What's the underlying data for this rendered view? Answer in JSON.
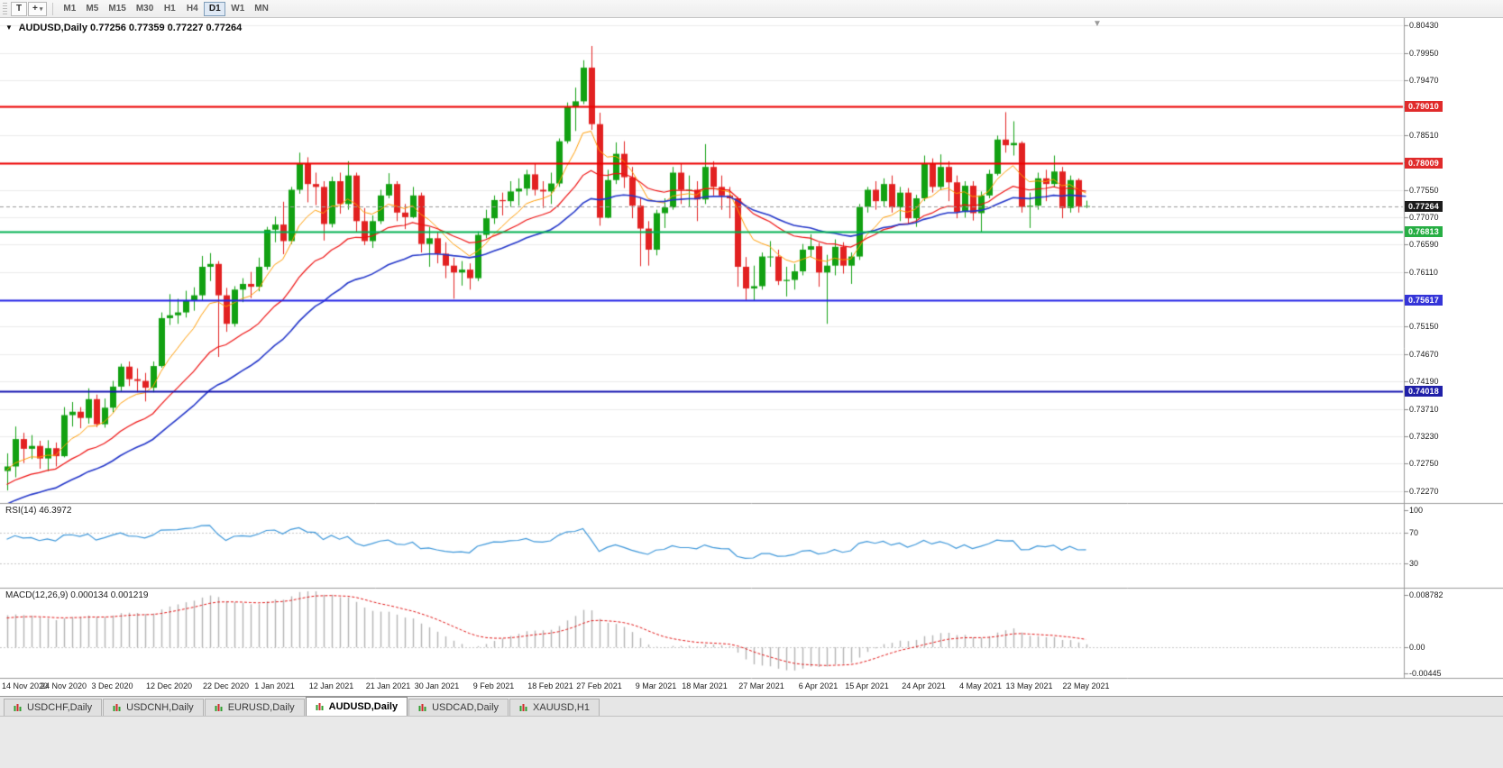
{
  "toolbar": {
    "text_tool": "T",
    "crosshair_glyph": "+",
    "caret": "▾",
    "timeframes": [
      "M1",
      "M5",
      "M15",
      "M30",
      "H1",
      "H4",
      "D1",
      "W1",
      "MN"
    ],
    "active_timeframe": "D1"
  },
  "chart_data": {
    "type": "candlestick",
    "symbol_label": "AUDUSD,Daily",
    "ohlc_label": "0.77256 0.77359 0.77227 0.77264",
    "ohlc_current": {
      "open": "0.77256",
      "high": "0.77359",
      "low": "0.77227",
      "close": "0.77264"
    },
    "title_arrow": "▼",
    "shift_marker": "▼",
    "ylim": [
      0.7206,
      0.8056
    ],
    "price_axis_ticks": [
      "0.80430",
      "0.79950",
      "0.79470",
      "0.78990",
      "0.78510",
      "0.78030",
      "0.77550",
      "0.77070",
      "0.76590",
      "0.76110",
      "0.75630",
      "0.75150",
      "0.74670",
      "0.74190",
      "0.73710",
      "0.73230",
      "0.72750",
      "0.72270"
    ],
    "time_axis_ticks": [
      {
        "label": "14 Nov 2020",
        "i": 0
      },
      {
        "label": "24 Nov 2020",
        "i": 7
      },
      {
        "label": "3 Dec 2020",
        "i": 13
      },
      {
        "label": "12 Dec 2020",
        "i": 20
      },
      {
        "label": "22 Dec 2020",
        "i": 27
      },
      {
        "label": "1 Jan 2021",
        "i": 33
      },
      {
        "label": "12 Jan 2021",
        "i": 40
      },
      {
        "label": "21 Jan 2021",
        "i": 47
      },
      {
        "label": "30 Jan 2021",
        "i": 53
      },
      {
        "label": "9 Feb 2021",
        "i": 60
      },
      {
        "label": "18 Feb 2021",
        "i": 67
      },
      {
        "label": "27 Feb 2021",
        "i": 73
      },
      {
        "label": "9 Mar 2021",
        "i": 80
      },
      {
        "label": "18 Mar 2021",
        "i": 86
      },
      {
        "label": "27 Mar 2021",
        "i": 93
      },
      {
        "label": "6 Apr 2021",
        "i": 100
      },
      {
        "label": "15 Apr 2021",
        "i": 106
      },
      {
        "label": "24 Apr 2021",
        "i": 113
      },
      {
        "label": "4 May 2021",
        "i": 120
      },
      {
        "label": "13 May 2021",
        "i": 126
      },
      {
        "label": "22 May 2021",
        "i": 133
      }
    ],
    "horizontal_levels": [
      {
        "name": "resistance-1",
        "price": 0.7901,
        "label": "0.79010",
        "line_color": "#f00000",
        "badge_color": "#e02b2b",
        "width": 2,
        "style": "solid"
      },
      {
        "name": "resistance-2",
        "price": 0.78009,
        "label": "0.78009",
        "line_color": "#f00000",
        "badge_color": "#e02b2b",
        "width": 2,
        "style": "solid"
      },
      {
        "name": "support-green",
        "price": 0.76813,
        "label": "0.76813",
        "line_color": "#00b050",
        "badge_color": "#27ae44",
        "width": 2,
        "style": "solid"
      },
      {
        "name": "support-blue-1",
        "price": 0.75617,
        "label": "0.75617",
        "line_color": "#2525e8",
        "badge_color": "#3535d8",
        "width": 2,
        "style": "solid"
      },
      {
        "name": "support-blue-2",
        "price": 0.74018,
        "label": "0.74018",
        "line_color": "#1414b0",
        "badge_color": "#2020a8",
        "width": 2,
        "style": "solid"
      },
      {
        "name": "current-price",
        "price": 0.77264,
        "label": "0.77264",
        "line_color": "#9a9a9a",
        "badge_color": "#1c1c1c",
        "width": 1,
        "style": "dashed"
      }
    ],
    "moving_averages": [
      {
        "period": 8,
        "seed": 0.7262,
        "color": "#ff9b00",
        "width": 1
      },
      {
        "period": 20,
        "seed": 0.7235,
        "color": "#ee1111",
        "width": 1.2
      },
      {
        "period": 34,
        "seed": 0.72,
        "color": "#2336c9",
        "width": 1.6
      }
    ],
    "rsi": {
      "label": "RSI(14) 46.3972",
      "value": "46.3972",
      "period": 14,
      "seed_gain": 0.0016,
      "seed_loss": 0.001,
      "color": "#3c96d9",
      "levels": [
        70,
        30
      ],
      "ticks": [
        {
          "label": "100",
          "value": 100
        },
        {
          "label": "70",
          "value": 70
        },
        {
          "label": "30",
          "value": 30
        }
      ]
    },
    "macd": {
      "label": "MACD(12,26,9) 0.000134 0.001219",
      "main_value": "0.000134",
      "signal_value": "0.001219",
      "fast": 12,
      "slow": 26,
      "signal": 9,
      "seed_fast": 0.7248,
      "seed_slow": 0.7192,
      "seed_signal": 0.0048,
      "hist_color": "#b4b4b4",
      "signal_color": "#e01515",
      "ticks": [
        {
          "label": "0.008782",
          "value": 0.008782
        },
        {
          "label": "0.00",
          "value": 0
        },
        {
          "label": "-0.00445",
          "value": -0.00445
        }
      ]
    },
    "colors": {
      "up": "#12a112",
      "down": "#e22121",
      "grid": "#ebebeb",
      "separator": "#9a9a9a",
      "axis_text": "#1b1b1b"
    },
    "candles": [
      [
        0.7262,
        0.7293,
        0.7228,
        0.727
      ],
      [
        0.727,
        0.734,
        0.7251,
        0.7318
      ],
      [
        0.7318,
        0.7329,
        0.7276,
        0.7301
      ],
      [
        0.7301,
        0.7325,
        0.7283,
        0.7306
      ],
      [
        0.7306,
        0.7315,
        0.7266,
        0.7284
      ],
      [
        0.7284,
        0.7316,
        0.7262,
        0.7302
      ],
      [
        0.7302,
        0.7312,
        0.727,
        0.7288
      ],
      [
        0.7288,
        0.7374,
        0.7286,
        0.736
      ],
      [
        0.736,
        0.7383,
        0.734,
        0.7366
      ],
      [
        0.7366,
        0.7374,
        0.7337,
        0.7355
      ],
      [
        0.7355,
        0.7407,
        0.7345,
        0.7388
      ],
      [
        0.7388,
        0.7396,
        0.7339,
        0.7344
      ],
      [
        0.7344,
        0.7389,
        0.7338,
        0.7373
      ],
      [
        0.7373,
        0.742,
        0.7365,
        0.741
      ],
      [
        0.741,
        0.745,
        0.7402,
        0.7445
      ],
      [
        0.7445,
        0.7454,
        0.7411,
        0.7423
      ],
      [
        0.7423,
        0.7442,
        0.74,
        0.742
      ],
      [
        0.742,
        0.7434,
        0.7384,
        0.7408
      ],
      [
        0.7408,
        0.7454,
        0.74,
        0.7446
      ],
      [
        0.7446,
        0.754,
        0.7443,
        0.753
      ],
      [
        0.753,
        0.7572,
        0.7518,
        0.7535
      ],
      [
        0.7535,
        0.7564,
        0.752,
        0.754
      ],
      [
        0.754,
        0.7578,
        0.7531,
        0.756
      ],
      [
        0.756,
        0.7584,
        0.7543,
        0.757
      ],
      [
        0.757,
        0.7639,
        0.756,
        0.762
      ],
      [
        0.762,
        0.7644,
        0.7595,
        0.7625
      ],
      [
        0.7625,
        0.763,
        0.7462,
        0.757
      ],
      [
        0.757,
        0.7583,
        0.7506,
        0.752
      ],
      [
        0.752,
        0.7586,
        0.7515,
        0.758
      ],
      [
        0.758,
        0.76,
        0.7558,
        0.759
      ],
      [
        0.759,
        0.7611,
        0.7565,
        0.7585
      ],
      [
        0.7585,
        0.7636,
        0.7577,
        0.762
      ],
      [
        0.762,
        0.769,
        0.7615,
        0.7685
      ],
      [
        0.7685,
        0.7708,
        0.7663,
        0.7694
      ],
      [
        0.7694,
        0.7734,
        0.7642,
        0.7665
      ],
      [
        0.7665,
        0.776,
        0.766,
        0.7755
      ],
      [
        0.7755,
        0.782,
        0.7748,
        0.78
      ],
      [
        0.78,
        0.7812,
        0.7733,
        0.7765
      ],
      [
        0.7765,
        0.7785,
        0.7728,
        0.776
      ],
      [
        0.776,
        0.777,
        0.7666,
        0.7695
      ],
      [
        0.7695,
        0.7778,
        0.7689,
        0.777
      ],
      [
        0.777,
        0.7785,
        0.7713,
        0.773
      ],
      [
        0.773,
        0.7805,
        0.772,
        0.778
      ],
      [
        0.778,
        0.7785,
        0.768,
        0.77
      ],
      [
        0.77,
        0.7723,
        0.7658,
        0.7665
      ],
      [
        0.7665,
        0.771,
        0.7653,
        0.77
      ],
      [
        0.77,
        0.7755,
        0.7695,
        0.7745
      ],
      [
        0.7745,
        0.7784,
        0.774,
        0.7765
      ],
      [
        0.7765,
        0.777,
        0.77,
        0.7715
      ],
      [
        0.7715,
        0.773,
        0.7686,
        0.7707
      ],
      [
        0.7707,
        0.776,
        0.7705,
        0.7745
      ],
      [
        0.7745,
        0.775,
        0.7645,
        0.766
      ],
      [
        0.766,
        0.769,
        0.762,
        0.767
      ],
      [
        0.767,
        0.768,
        0.7626,
        0.7643
      ],
      [
        0.7643,
        0.7663,
        0.76,
        0.7622
      ],
      [
        0.7622,
        0.7636,
        0.7564,
        0.761
      ],
      [
        0.761,
        0.763,
        0.7587,
        0.7615
      ],
      [
        0.7615,
        0.7626,
        0.758,
        0.76
      ],
      [
        0.76,
        0.7682,
        0.7595,
        0.7676
      ],
      [
        0.7676,
        0.772,
        0.767,
        0.7705
      ],
      [
        0.7705,
        0.7745,
        0.7695,
        0.7737
      ],
      [
        0.7737,
        0.775,
        0.771,
        0.7735
      ],
      [
        0.7735,
        0.777,
        0.7725,
        0.7752
      ],
      [
        0.7752,
        0.7775,
        0.7727,
        0.7757
      ],
      [
        0.7757,
        0.779,
        0.7745,
        0.7782
      ],
      [
        0.7782,
        0.78,
        0.7745,
        0.7755
      ],
      [
        0.7755,
        0.777,
        0.7723,
        0.7752
      ],
      [
        0.7752,
        0.7785,
        0.773,
        0.7766
      ],
      [
        0.7766,
        0.7845,
        0.776,
        0.784
      ],
      [
        0.784,
        0.7908,
        0.7836,
        0.79
      ],
      [
        0.79,
        0.7934,
        0.7858,
        0.791
      ],
      [
        0.791,
        0.7982,
        0.7905,
        0.7969
      ],
      [
        0.7969,
        0.8007,
        0.786,
        0.787
      ],
      [
        0.787,
        0.789,
        0.7692,
        0.7706
      ],
      [
        0.7706,
        0.779,
        0.7705,
        0.7772
      ],
      [
        0.7772,
        0.7838,
        0.7765,
        0.7818
      ],
      [
        0.7818,
        0.784,
        0.7758,
        0.7777
      ],
      [
        0.7777,
        0.7795,
        0.7705,
        0.7727
      ],
      [
        0.7727,
        0.774,
        0.7621,
        0.7687
      ],
      [
        0.7687,
        0.77,
        0.7622,
        0.765
      ],
      [
        0.765,
        0.772,
        0.764,
        0.7714
      ],
      [
        0.7714,
        0.774,
        0.7688,
        0.7724
      ],
      [
        0.7724,
        0.7795,
        0.772,
        0.7785
      ],
      [
        0.7785,
        0.78,
        0.773,
        0.7755
      ],
      [
        0.7755,
        0.778,
        0.7725,
        0.7755
      ],
      [
        0.7755,
        0.777,
        0.77,
        0.7738
      ],
      [
        0.7738,
        0.7835,
        0.773,
        0.7795
      ],
      [
        0.7795,
        0.7805,
        0.7745,
        0.776
      ],
      [
        0.776,
        0.778,
        0.772,
        0.7745
      ],
      [
        0.7745,
        0.776,
        0.7705,
        0.774
      ],
      [
        0.774,
        0.7742,
        0.7585,
        0.762
      ],
      [
        0.762,
        0.7637,
        0.7562,
        0.7582
      ],
      [
        0.7582,
        0.7622,
        0.756,
        0.7586
      ],
      [
        0.7586,
        0.7645,
        0.758,
        0.7638
      ],
      [
        0.7638,
        0.7665,
        0.762,
        0.7638
      ],
      [
        0.7638,
        0.765,
        0.7588,
        0.7595
      ],
      [
        0.7595,
        0.762,
        0.7568,
        0.7597
      ],
      [
        0.7597,
        0.7625,
        0.758,
        0.7612
      ],
      [
        0.7612,
        0.766,
        0.7605,
        0.765
      ],
      [
        0.765,
        0.7677,
        0.7637,
        0.7656
      ],
      [
        0.7656,
        0.7662,
        0.7585,
        0.761
      ],
      [
        0.761,
        0.7641,
        0.752,
        0.7622
      ],
      [
        0.7622,
        0.7668,
        0.7605,
        0.7655
      ],
      [
        0.7655,
        0.7663,
        0.7608,
        0.7622
      ],
      [
        0.7622,
        0.7645,
        0.759,
        0.7638
      ],
      [
        0.7638,
        0.773,
        0.7632,
        0.7725
      ],
      [
        0.7725,
        0.776,
        0.7715,
        0.7755
      ],
      [
        0.7755,
        0.777,
        0.772,
        0.7735
      ],
      [
        0.7735,
        0.7775,
        0.7725,
        0.7765
      ],
      [
        0.7765,
        0.778,
        0.7715,
        0.7724
      ],
      [
        0.7724,
        0.776,
        0.77,
        0.775
      ],
      [
        0.775,
        0.7758,
        0.7696,
        0.7705
      ],
      [
        0.7705,
        0.7746,
        0.769,
        0.774
      ],
      [
        0.774,
        0.7815,
        0.7735,
        0.78
      ],
      [
        0.78,
        0.781,
        0.775,
        0.776
      ],
      [
        0.776,
        0.7817,
        0.7755,
        0.7795
      ],
      [
        0.7795,
        0.7805,
        0.7735,
        0.7768
      ],
      [
        0.7768,
        0.778,
        0.7705,
        0.7716
      ],
      [
        0.7716,
        0.777,
        0.7706,
        0.7762
      ],
      [
        0.7762,
        0.777,
        0.7701,
        0.7714
      ],
      [
        0.7714,
        0.7752,
        0.768,
        0.7745
      ],
      [
        0.7745,
        0.779,
        0.774,
        0.7783
      ],
      [
        0.7783,
        0.785,
        0.778,
        0.7843
      ],
      [
        0.7843,
        0.7891,
        0.782,
        0.7833
      ],
      [
        0.7833,
        0.7875,
        0.7815,
        0.7837
      ],
      [
        0.7837,
        0.784,
        0.7715,
        0.7725
      ],
      [
        0.7725,
        0.775,
        0.7688,
        0.7727
      ],
      [
        0.7727,
        0.7785,
        0.772,
        0.7775
      ],
      [
        0.7775,
        0.779,
        0.7735,
        0.7765
      ],
      [
        0.7765,
        0.7815,
        0.776,
        0.7787
      ],
      [
        0.7787,
        0.7795,
        0.7705,
        0.7723
      ],
      [
        0.7723,
        0.778,
        0.7715,
        0.7772
      ],
      [
        0.7772,
        0.7775,
        0.7715,
        0.7726
      ],
      [
        0.77256,
        0.77359,
        0.77227,
        0.77264
      ]
    ]
  },
  "tabs": {
    "items": [
      "USDCHF,Daily",
      "USDCNH,Daily",
      "EURUSD,Daily",
      "AUDUSD,Daily",
      "USDCAD,Daily",
      "XAUUSD,H1"
    ],
    "active": "AUDUSD,Daily"
  }
}
